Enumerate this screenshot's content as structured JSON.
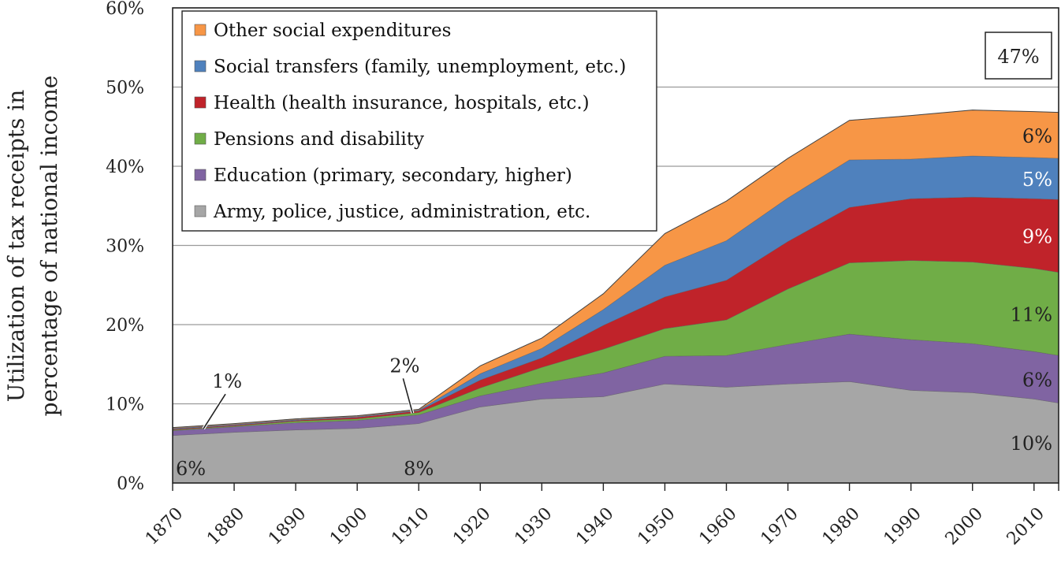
{
  "chart_data": {
    "type": "area",
    "stacked": true,
    "title": "",
    "ylabel_lines": [
      "Utilization of tax receipts in",
      "percentage of national income"
    ],
    "xlabel": "",
    "ylim": [
      0,
      60
    ],
    "xlim": [
      1870,
      2014
    ],
    "y_ticks": [
      0,
      10,
      20,
      30,
      40,
      50,
      60
    ],
    "y_tick_labels": [
      "0%",
      "10%",
      "20%",
      "30%",
      "40%",
      "50%",
      "60%"
    ],
    "x_ticks": [
      1870,
      1880,
      1890,
      1900,
      1910,
      1920,
      1930,
      1940,
      1950,
      1960,
      1970,
      1980,
      1990,
      2000,
      2010
    ],
    "x_tick_labels": [
      "1870",
      "1880",
      "1890",
      "1900",
      "1910",
      "1920",
      "1930",
      "1940",
      "1950",
      "1960",
      "1970",
      "1980",
      "1990",
      "2000",
      "2010"
    ],
    "x": [
      1870,
      1880,
      1890,
      1900,
      1910,
      1920,
      1930,
      1940,
      1950,
      1960,
      1970,
      1980,
      1990,
      2000,
      2010,
      2014
    ],
    "series": [
      {
        "name": "Army, police, justice, administration, etc.",
        "color": "#a6a6a6",
        "values": [
          6.0,
          6.4,
          6.7,
          6.9,
          7.5,
          9.6,
          10.6,
          10.9,
          12.5,
          12.1,
          12.5,
          12.8,
          11.7,
          11.4,
          10.6,
          10.1
        ]
      },
      {
        "name": "Education (primary, secondary, higher)",
        "color": "#8064a2",
        "values": [
          0.6,
          0.7,
          0.9,
          1.0,
          1.1,
          1.4,
          2.0,
          3.0,
          3.5,
          4.0,
          5.0,
          6.0,
          6.4,
          6.2,
          6.0,
          6.0
        ]
      },
      {
        "name": "Pensions and disability",
        "color": "#70ad47",
        "values": [
          0.1,
          0.1,
          0.2,
          0.2,
          0.3,
          1.0,
          2.0,
          3.0,
          3.5,
          4.5,
          7.0,
          9.0,
          10.0,
          10.3,
          10.5,
          10.5
        ]
      },
      {
        "name": "Health (health insurance, hospitals, etc.)",
        "color": "#c0232a",
        "values": [
          0.1,
          0.1,
          0.1,
          0.2,
          0.2,
          1.0,
          1.2,
          3.0,
          4.0,
          5.0,
          6.0,
          7.0,
          7.8,
          8.2,
          8.8,
          9.2
        ]
      },
      {
        "name": "Social transfers (family, unemployment, etc.)",
        "color": "#4f81bd",
        "values": [
          0.1,
          0.1,
          0.1,
          0.1,
          0.1,
          0.8,
          1.2,
          2.0,
          4.0,
          5.0,
          5.5,
          6.0,
          5.0,
          5.2,
          5.2,
          5.2
        ]
      },
      {
        "name": "Other social expenditures",
        "color": "#f79646",
        "values": [
          0.1,
          0.1,
          0.1,
          0.1,
          0.1,
          1.0,
          1.3,
          2.0,
          4.0,
          5.0,
          5.0,
          5.0,
          5.5,
          5.8,
          5.8,
          5.8
        ]
      }
    ],
    "legend": {
      "placement": "top-left"
    },
    "annotations": [
      {
        "text": "47%",
        "boxed": true,
        "placement": "top-right"
      },
      {
        "text": "6%",
        "series": "Other social expenditures",
        "year": 2014,
        "color": "#222222"
      },
      {
        "text": "5%",
        "series": "Social transfers (family, unemployment, etc.)",
        "year": 2014,
        "color": "#ffffff"
      },
      {
        "text": "9%",
        "series": "Health (health insurance, hospitals, etc.)",
        "year": 2014,
        "color": "#ffffff"
      },
      {
        "text": "11%",
        "series": "Pensions and disability",
        "year": 2014,
        "color": "#222222"
      },
      {
        "text": "6%",
        "series": "Education (primary, secondary, higher)",
        "year": 2014,
        "color": "#222222"
      },
      {
        "text": "10%",
        "series": "Army, police, justice, administration, etc.",
        "year": 2014,
        "color": "#222222"
      },
      {
        "text": "6%",
        "series": "Army, police, justice, administration, etc.",
        "year": 1870,
        "color": "#222222"
      },
      {
        "text": "8%",
        "series": "Army, police, justice, administration, etc.",
        "year": 1910,
        "color": "#222222"
      },
      {
        "text": "1%",
        "callout_year": 1875,
        "color": "#222222"
      },
      {
        "text": "2%",
        "callout_year": 1909,
        "color": "#222222"
      }
    ]
  }
}
